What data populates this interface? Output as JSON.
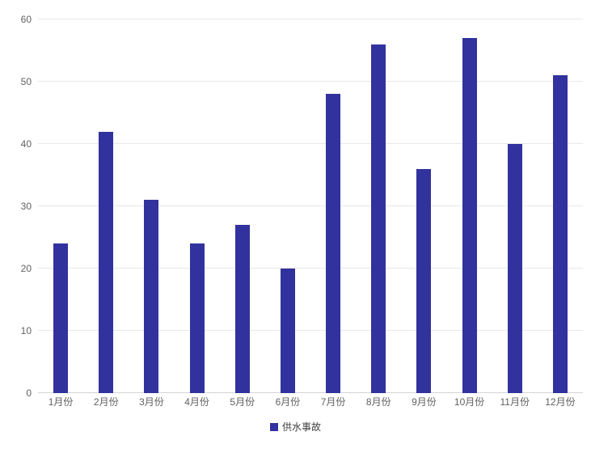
{
  "chart_data": {
    "type": "bar",
    "title": "",
    "categories": [
      "1月份",
      "2月份",
      "3月份",
      "4月份",
      "5月份",
      "6月份",
      "7月份",
      "8月份",
      "9月份",
      "10月份",
      "11月份",
      "12月份"
    ],
    "series": [
      {
        "name": "供水事故",
        "values": [
          24,
          42,
          31,
          24,
          27,
          20,
          48,
          56,
          36,
          57,
          40,
          51
        ]
      }
    ],
    "xlabel": "",
    "ylabel": "",
    "ylim": [
      0,
      60
    ],
    "yticks": [
      0,
      10,
      20,
      30,
      40,
      50,
      60
    ],
    "grid": true,
    "legend_position": "bottom-center",
    "colors": {
      "bar": "#32329E",
      "gridline": "#e8e8e8",
      "axis_line": "#d4d4d4",
      "tick_label": "#616161",
      "legend_text": "#404040",
      "background": "#ffffff"
    }
  }
}
